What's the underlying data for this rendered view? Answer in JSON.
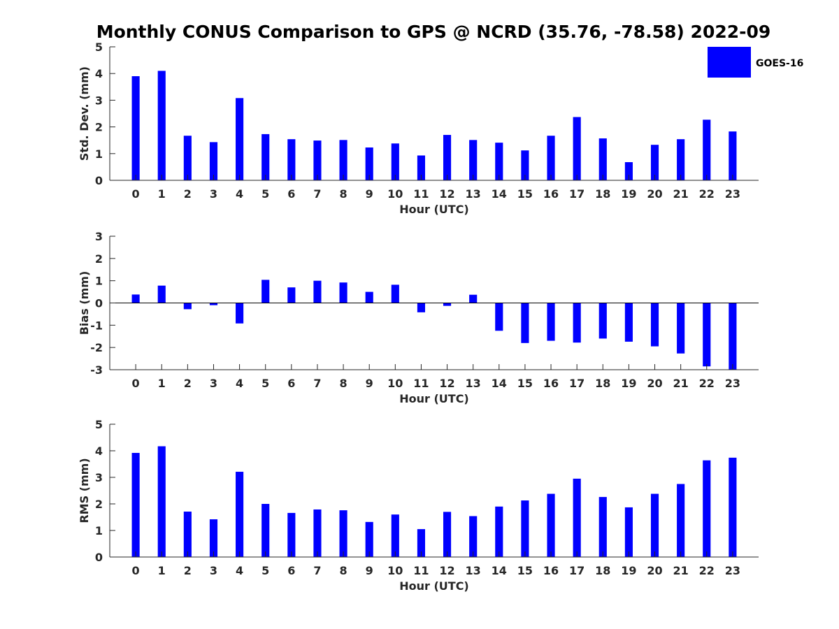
{
  "title": "Monthly CONUS Comparison to GPS @ NCRD (35.76, -78.58) 2022-09",
  "legend": {
    "label": "GOES-16",
    "color": "#0000ff",
    "placement": "top-right"
  },
  "chart_data": [
    {
      "type": "bar",
      "xlabel": "Hour (UTC)",
      "ylabel": "Std. Dev. (mm)",
      "ylim": [
        0,
        5
      ],
      "yticks": [
        "0",
        "1",
        "2",
        "3",
        "4",
        "5"
      ],
      "categories": [
        "0",
        "1",
        "2",
        "3",
        "4",
        "5",
        "6",
        "7",
        "8",
        "9",
        "10",
        "11",
        "12",
        "13",
        "14",
        "15",
        "16",
        "17",
        "18",
        "19",
        "20",
        "21",
        "22",
        "23"
      ],
      "series": [
        {
          "name": "GOES-16",
          "color": "#0000ff",
          "values": [
            3.9,
            4.1,
            1.67,
            1.43,
            3.08,
            1.73,
            1.54,
            1.49,
            1.51,
            1.23,
            1.38,
            0.93,
            1.7,
            1.51,
            1.41,
            1.12,
            1.67,
            2.37,
            1.57,
            0.68,
            1.33,
            1.54,
            2.27,
            1.83
          ]
        }
      ]
    },
    {
      "type": "bar",
      "xlabel": "Hour (UTC)",
      "ylabel": "Bias (mm)",
      "ylim": [
        -3,
        3
      ],
      "yticks": [
        "-3",
        "-2",
        "-1",
        "0",
        "1",
        "2",
        "3"
      ],
      "categories": [
        "0",
        "1",
        "2",
        "3",
        "4",
        "5",
        "6",
        "7",
        "8",
        "9",
        "10",
        "11",
        "12",
        "13",
        "14",
        "15",
        "16",
        "17",
        "18",
        "19",
        "20",
        "21",
        "22",
        "23"
      ],
      "series": [
        {
          "name": "GOES-16",
          "color": "#0000ff",
          "values": [
            0.38,
            0.78,
            -0.28,
            -0.1,
            -0.92,
            1.04,
            0.7,
            1.0,
            0.92,
            0.5,
            0.82,
            -0.42,
            -0.13,
            0.37,
            -1.25,
            -1.8,
            -1.7,
            -1.78,
            -1.6,
            -1.74,
            -1.95,
            -2.27,
            -2.85,
            -3.0
          ]
        }
      ]
    },
    {
      "type": "bar",
      "xlabel": "Hour (UTC)",
      "ylabel": "RMS (mm)",
      "ylim": [
        0,
        5
      ],
      "yticks": [
        "0",
        "1",
        "2",
        "3",
        "4",
        "5"
      ],
      "categories": [
        "0",
        "1",
        "2",
        "3",
        "4",
        "5",
        "6",
        "7",
        "8",
        "9",
        "10",
        "11",
        "12",
        "13",
        "14",
        "15",
        "16",
        "17",
        "18",
        "19",
        "20",
        "21",
        "22",
        "23"
      ],
      "series": [
        {
          "name": "GOES-16",
          "color": "#0000ff",
          "values": [
            3.92,
            4.17,
            1.71,
            1.42,
            3.21,
            2.0,
            1.66,
            1.79,
            1.76,
            1.32,
            1.6,
            1.05,
            1.7,
            1.54,
            1.9,
            2.13,
            2.38,
            2.95,
            2.26,
            1.87,
            2.38,
            2.75,
            3.64,
            3.74
          ]
        }
      ]
    }
  ]
}
